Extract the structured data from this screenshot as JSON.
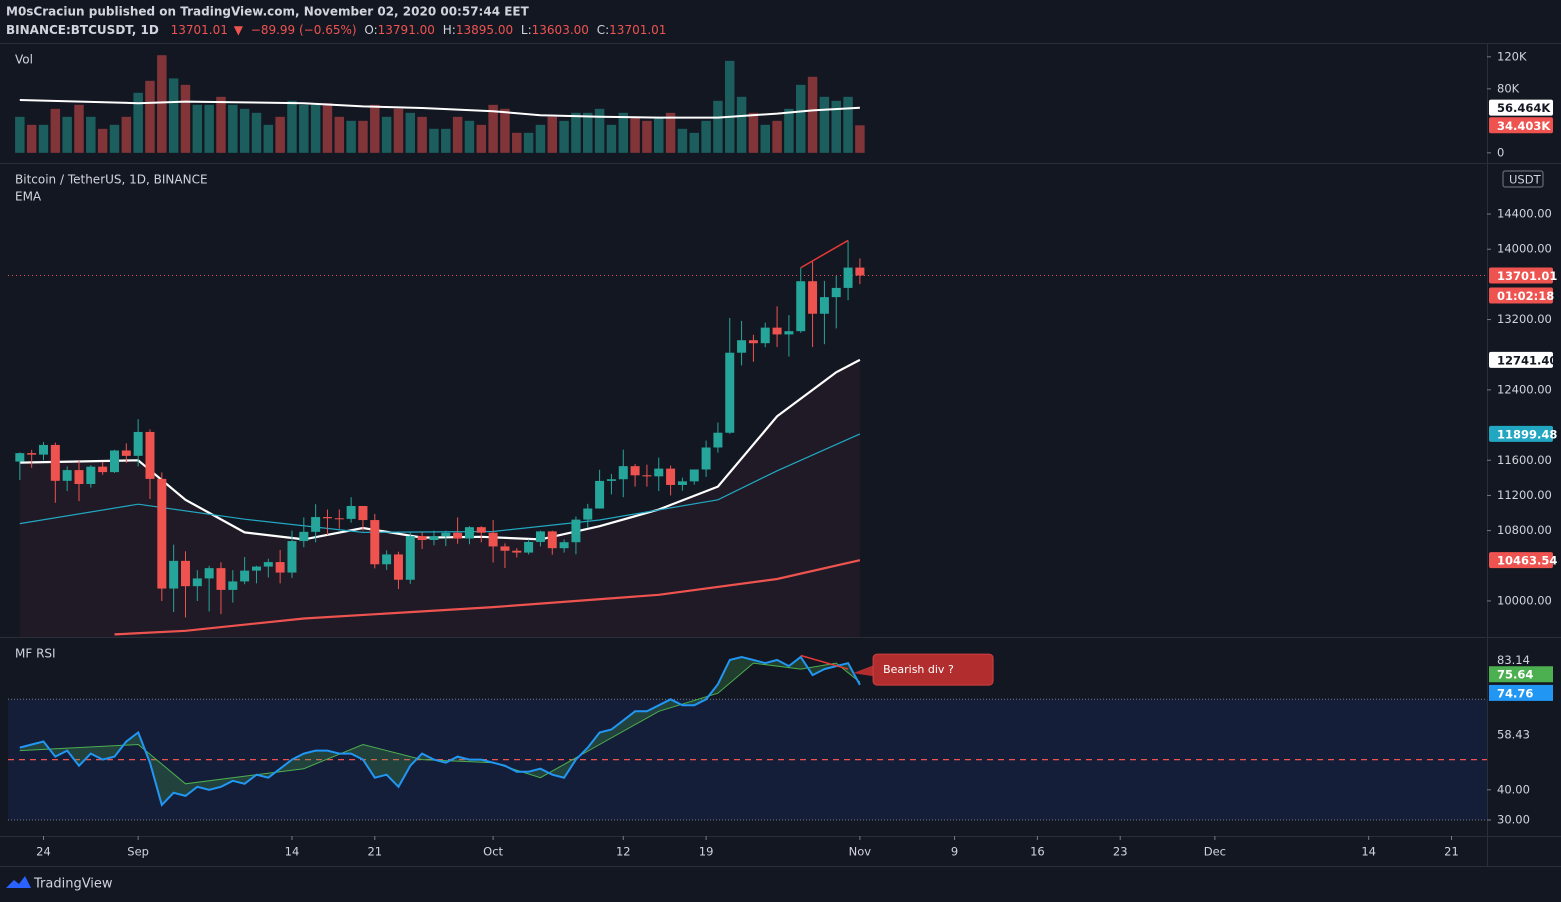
{
  "header": {
    "author_line": "M0sCraciun published on TradingView.com, November 02, 2020 00:57:44 EET",
    "symbol": "BINANCE:BTCUSDT, 1D",
    "last": "13701.01",
    "arrow": "▼",
    "change": "−89.99 (−0.65%)",
    "ohlc": [
      {
        "label": "O:",
        "value": "13791.00"
      },
      {
        "label": "H:",
        "value": "13895.00"
      },
      {
        "label": "L:",
        "value": "13603.00"
      },
      {
        "label": "C:",
        "value": "13701.01"
      }
    ]
  },
  "footer": {
    "brand": "TradingView"
  },
  "chart_data": [
    {
      "type": "bar",
      "title": "Vol",
      "xlim": [
        "2020-08-21",
        "2020-12-24"
      ],
      "ylim": [
        -12700,
        136000
      ],
      "yticks": [
        0,
        {
          "value": 80000,
          "label": "80K"
        },
        {
          "value": 120000,
          "label": "120K"
        }
      ],
      "up_color": "#26a69a",
      "down_color": "#ef5350",
      "values": [
        45000,
        35000,
        35000,
        55000,
        45000,
        60000,
        45000,
        30000,
        35000,
        45000,
        75000,
        90000,
        122000,
        93000,
        85000,
        60000,
        60000,
        70000,
        60000,
        55000,
        50000,
        35000,
        45000,
        65000,
        60000,
        60000,
        62000,
        45000,
        40000,
        40000,
        60000,
        45000,
        55000,
        50000,
        45000,
        30000,
        30000,
        45000,
        40000,
        35000,
        60000,
        55000,
        25000,
        25000,
        35000,
        45000,
        40000,
        50000,
        50000,
        55000,
        35000,
        50000,
        45000,
        40000,
        45000,
        50000,
        30000,
        25000,
        40000,
        65000,
        115000,
        70000,
        50000,
        35000,
        40000,
        55000,
        85000,
        95000,
        70000,
        65000,
        70000,
        34403
      ],
      "last_label": "34.403K",
      "series": [
        {
          "color": "#ffffff",
          "last_label": "56.464K",
          "x": [
            "2020-08-22",
            "2020-09-01",
            "2020-09-05",
            "2020-09-10",
            "2020-09-15",
            "2020-09-20",
            "2020-09-25",
            "2020-10-01",
            "2020-10-05",
            "2020-10-10",
            "2020-10-15",
            "2020-10-20",
            "2020-10-25",
            "2020-10-28",
            "2020-11-01"
          ],
          "values": [
            66000,
            62000,
            64000,
            63000,
            62000,
            58000,
            56000,
            52000,
            47000,
            45000,
            44000,
            44000,
            49000,
            53000,
            56464
          ]
        }
      ]
    },
    {
      "type": "candlestick",
      "title": "Bitcoin / TetherUS, 1D, BINANCE",
      "indicator": "EMA",
      "currency": "USDT",
      "countdown": "01:02:18",
      "xlim": [
        "2020-08-21",
        "2020-12-24"
      ],
      "ylim": [
        9590,
        14969
      ],
      "yticks": [
        {
          "value": 10000,
          "label": "10000.00"
        },
        {
          "value": 10800,
          "label": "10800.00"
        },
        {
          "value": 11200,
          "label": "11200.00"
        },
        {
          "value": 11600,
          "label": "11600.00"
        },
        {
          "value": 12400,
          "label": "12400.00"
        },
        {
          "value": 13200,
          "label": "13200.00"
        },
        {
          "value": 14000,
          "label": "14000.00"
        },
        {
          "value": 14400,
          "label": "14400.00"
        }
      ],
      "up_color": "#26a69a",
      "down_color": "#ef5350",
      "categories": [
        "2020-08-22",
        "2020-08-23",
        "2020-08-24",
        "2020-08-25",
        "2020-08-26",
        "2020-08-27",
        "2020-08-28",
        "2020-08-29",
        "2020-08-30",
        "2020-08-31",
        "2020-09-01",
        "2020-09-02",
        "2020-09-03",
        "2020-09-04",
        "2020-09-05",
        "2020-09-06",
        "2020-09-07",
        "2020-09-08",
        "2020-09-09",
        "2020-09-10",
        "2020-09-11",
        "2020-09-12",
        "2020-09-13",
        "2020-09-14",
        "2020-09-15",
        "2020-09-16",
        "2020-09-17",
        "2020-09-18",
        "2020-09-19",
        "2020-09-20",
        "2020-09-21",
        "2020-09-22",
        "2020-09-23",
        "2020-09-24",
        "2020-09-25",
        "2020-09-26",
        "2020-09-27",
        "2020-09-28",
        "2020-09-29",
        "2020-09-30",
        "2020-10-01",
        "2020-10-02",
        "2020-10-03",
        "2020-10-04",
        "2020-10-05",
        "2020-10-06",
        "2020-10-07",
        "2020-10-08",
        "2020-10-09",
        "2020-10-10",
        "2020-10-11",
        "2020-10-12",
        "2020-10-13",
        "2020-10-14",
        "2020-10-15",
        "2020-10-16",
        "2020-10-17",
        "2020-10-18",
        "2020-10-19",
        "2020-10-20",
        "2020-10-21",
        "2020-10-22",
        "2020-10-23",
        "2020-10-24",
        "2020-10-25",
        "2020-10-26",
        "2020-10-27",
        "2020-10-28",
        "2020-10-29",
        "2020-10-30",
        "2020-10-31",
        "2020-11-01"
      ],
      "open": [
        11585,
        11681,
        11664,
        11774,
        11366,
        11488,
        11330,
        11527,
        11465,
        11711,
        11650,
        11922,
        11388,
        10141,
        10456,
        10168,
        10256,
        10373,
        10126,
        10222,
        10345,
        10391,
        10442,
        10323,
        10681,
        10786,
        10954,
        10940,
        10933,
        11080,
        10920,
        10417,
        10529,
        10241,
        10737,
        10693,
        10735,
        10775,
        10710,
        10839,
        10776,
        10620,
        10571,
        10550,
        10671,
        10791,
        10600,
        10668,
        10925,
        11051,
        11365,
        11384,
        11533,
        11429,
        11417,
        11505,
        11319,
        11360,
        11495,
        11745,
        11913,
        12823,
        12965,
        12931,
        13108,
        13031,
        13068,
        13636,
        13266,
        13455,
        13560,
        13791
      ],
      "high": [
        11689,
        11718,
        11807,
        11800,
        11530,
        11594,
        11545,
        11580,
        11719,
        11793,
        12067,
        11950,
        11462,
        10640,
        10565,
        10350,
        10400,
        10440,
        10350,
        10500,
        10400,
        10480,
        10580,
        10800,
        10950,
        11100,
        11040,
        11040,
        11180,
        11080,
        10990,
        10575,
        10560,
        10780,
        10780,
        10800,
        10800,
        10950,
        10850,
        10850,
        10920,
        10655,
        10600,
        10700,
        10800,
        10800,
        10700,
        10960,
        11104,
        11492,
        11445,
        11720,
        11557,
        11550,
        11630,
        11540,
        11402,
        11488,
        11824,
        12028,
        13217,
        13185,
        13027,
        13165,
        13350,
        13250,
        13789,
        13859,
        13640,
        13695,
        14100,
        13895
      ],
      "low": [
        11376,
        11514,
        11600,
        11117,
        11250,
        11135,
        11289,
        11435,
        11456,
        11570,
        11530,
        11160,
        10000,
        9875,
        9813,
        10000,
        9880,
        9850,
        9982,
        10190,
        10200,
        10266,
        10200,
        10262,
        10610,
        10667,
        10750,
        10820,
        10890,
        10800,
        10370,
        10353,
        10136,
        10195,
        10590,
        10633,
        10624,
        10650,
        10645,
        10666,
        10437,
        10375,
        10495,
        10529,
        10620,
        10525,
        10550,
        10531,
        10830,
        11050,
        11212,
        11180,
        11300,
        11300,
        11250,
        11200,
        11255,
        11322,
        11411,
        11686,
        11900,
        12678,
        12720,
        12885,
        12888,
        12779,
        13050,
        12888,
        12920,
        13100,
        13420,
        13603
      ],
      "close": [
        11681,
        11664,
        11774,
        11366,
        11488,
        11330,
        11527,
        11465,
        11711,
        11650,
        11922,
        11388,
        10141,
        10456,
        10168,
        10256,
        10373,
        10126,
        10222,
        10345,
        10391,
        10442,
        10323,
        10681,
        10786,
        10954,
        10940,
        10933,
        11080,
        10920,
        10417,
        10529,
        10241,
        10737,
        10693,
        10735,
        10775,
        10710,
        10839,
        10776,
        10620,
        10571,
        10550,
        10671,
        10791,
        10600,
        10668,
        10925,
        11051,
        11365,
        11384,
        11533,
        11429,
        11417,
        11505,
        11319,
        11360,
        11495,
        11745,
        11913,
        12823,
        12965,
        12931,
        13108,
        13031,
        13068,
        13636,
        13266,
        13455,
        13560,
        13791,
        13701.01
      ],
      "series": [
        {
          "color": "#ffffff",
          "last_label": "12741.40",
          "x": [
            "2020-08-22",
            "2020-09-01",
            "2020-09-05",
            "2020-09-10",
            "2020-09-15",
            "2020-09-20",
            "2020-09-25",
            "2020-09-30",
            "2020-10-05",
            "2020-10-10",
            "2020-10-15",
            "2020-10-20",
            "2020-10-25",
            "2020-10-30",
            "2020-11-01"
          ],
          "values": [
            11573,
            11600,
            11150,
            10780,
            10700,
            10830,
            10720,
            10730,
            10700,
            10850,
            11040,
            11300,
            12100,
            12600,
            12741.4
          ]
        },
        {
          "color": "#22a7c2",
          "last_label": "11899.48",
          "x": [
            "2020-08-22",
            "2020-09-01",
            "2020-09-10",
            "2020-09-20",
            "2020-10-01",
            "2020-10-10",
            "2020-10-20",
            "2020-10-25",
            "2020-11-01"
          ],
          "values": [
            10880,
            11100,
            10930,
            10780,
            10790,
            10920,
            11150,
            11480,
            11899.48
          ]
        },
        {
          "color": "#ef5350",
          "last_label": "10463.54",
          "x": [
            "2020-08-30",
            "2020-09-05",
            "2020-09-15",
            "2020-10-01",
            "2020-10-15",
            "2020-10-25",
            "2020-11-01"
          ],
          "values": [
            9620,
            9660,
            9800,
            9930,
            10070,
            10250,
            10463.54
          ]
        }
      ],
      "trendline": {
        "color": "#e53935",
        "x": [
          "2020-10-27",
          "2020-10-31"
        ],
        "values": [
          13789,
          14100
        ]
      }
    },
    {
      "type": "line",
      "title": "MF RSI",
      "xlim": [
        "2020-08-21",
        "2020-12-24"
      ],
      "ylim": [
        24.7,
        90.3
      ],
      "yticks": [
        {
          "value": 30,
          "label": "30.00"
        },
        {
          "value": 40,
          "label": "40.00"
        }
      ],
      "xticks": [
        {
          "value": "2020-08-24",
          "label": "24"
        },
        {
          "value": "2020-09-01",
          "label": "Sep"
        },
        {
          "value": "2020-09-14",
          "label": "14"
        },
        {
          "value": "2020-09-21",
          "label": "21"
        },
        {
          "value": "2020-10-01",
          "label": "Oct"
        },
        {
          "value": "2020-10-12",
          "label": "12"
        },
        {
          "value": "2020-10-19",
          "label": "19"
        },
        {
          "value": "2020-11-01",
          "label": "Nov"
        },
        {
          "value": "2020-11-09",
          "label": "9"
        },
        {
          "value": "2020-11-16",
          "label": "16"
        },
        {
          "value": "2020-11-23",
          "label": "23"
        },
        {
          "value": "2020-12-01",
          "label": "Dec"
        },
        {
          "value": "2020-12-14",
          "label": "14"
        },
        {
          "value": "2020-12-21",
          "label": "21"
        }
      ],
      "bands": [
        30,
        70
      ],
      "midline": 50,
      "band_color": "#2962ff",
      "markers": [
        {
          "value": 83.14,
          "label": "83.14"
        },
        {
          "value": 58.43,
          "label": "58.43"
        }
      ],
      "series": [
        {
          "color": "#2196f3",
          "last_label": "74.76",
          "x": [
            "2020-08-22",
            "2020-08-23",
            "2020-08-24",
            "2020-08-25",
            "2020-08-26",
            "2020-08-27",
            "2020-08-28",
            "2020-08-29",
            "2020-08-30",
            "2020-08-31",
            "2020-09-01",
            "2020-09-02",
            "2020-09-03",
            "2020-09-04",
            "2020-09-05",
            "2020-09-06",
            "2020-09-07",
            "2020-09-08",
            "2020-09-09",
            "2020-09-10",
            "2020-09-11",
            "2020-09-12",
            "2020-09-13",
            "2020-09-14",
            "2020-09-15",
            "2020-09-16",
            "2020-09-17",
            "2020-09-18",
            "2020-09-19",
            "2020-09-20",
            "2020-09-21",
            "2020-09-22",
            "2020-09-23",
            "2020-09-24",
            "2020-09-25",
            "2020-09-26",
            "2020-09-27",
            "2020-09-28",
            "2020-09-29",
            "2020-09-30",
            "2020-10-01",
            "2020-10-02",
            "2020-10-03",
            "2020-10-04",
            "2020-10-05",
            "2020-10-06",
            "2020-10-07",
            "2020-10-08",
            "2020-10-09",
            "2020-10-10",
            "2020-10-11",
            "2020-10-12",
            "2020-10-13",
            "2020-10-14",
            "2020-10-15",
            "2020-10-16",
            "2020-10-17",
            "2020-10-18",
            "2020-10-19",
            "2020-10-20",
            "2020-10-21",
            "2020-10-22",
            "2020-10-23",
            "2020-10-24",
            "2020-10-25",
            "2020-10-26",
            "2020-10-27",
            "2020-10-28",
            "2020-10-29",
            "2020-10-30",
            "2020-10-31",
            "2020-11-01"
          ],
          "values": [
            54,
            55,
            56,
            51,
            53,
            48,
            52,
            50,
            51,
            56,
            59,
            49,
            35,
            39,
            38,
            41,
            40,
            41,
            43,
            42,
            45,
            44,
            47,
            50,
            52,
            53,
            53,
            52,
            52,
            50,
            44,
            45,
            41,
            48,
            52,
            50,
            49,
            51,
            50,
            50,
            49,
            48,
            46,
            46,
            47,
            45,
            44,
            50,
            54,
            59,
            60,
            63,
            66,
            66,
            68,
            70,
            68,
            68,
            70,
            75,
            83,
            84,
            83,
            82,
            83,
            81,
            84,
            78,
            80,
            81,
            82,
            74.76
          ]
        },
        {
          "color": "#4caf50",
          "last_label": "75.64",
          "x": [
            "2020-08-22",
            "2020-09-01",
            "2020-09-05",
            "2020-09-15",
            "2020-09-20",
            "2020-09-25",
            "2020-10-01",
            "2020-10-05",
            "2020-10-10",
            "2020-10-15",
            "2020-10-20",
            "2020-10-23",
            "2020-10-27",
            "2020-10-30",
            "2020-11-01"
          ],
          "values": [
            53,
            55,
            42,
            47,
            55,
            50,
            49,
            44,
            55,
            66,
            72,
            82,
            80,
            82,
            75.64
          ]
        }
      ],
      "trendline": {
        "color": "#e53935",
        "x": [
          "2020-10-27",
          "2020-10-31"
        ],
        "values": [
          84.5,
          80
        ]
      },
      "annotation": "Bearish div ?"
    }
  ]
}
